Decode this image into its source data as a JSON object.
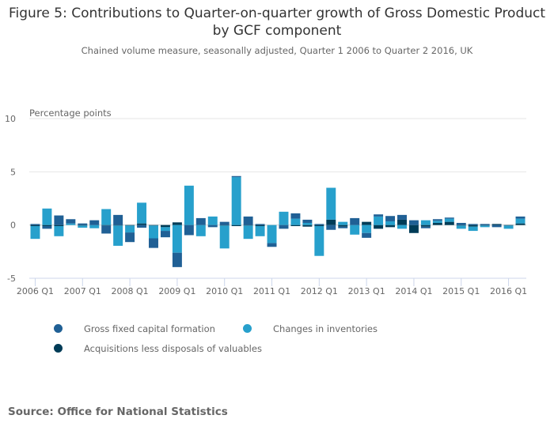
{
  "chart_data": {
    "type": "bar",
    "stacked": true,
    "title": "Figure 5: Contributions to Quarter-on-quarter growth of Gross Domestic Product by GCF component",
    "subtitle": "Chained volume measure, seasonally adjusted, Quarter 1 2006 to Quarter 2 2016, UK",
    "ylabel": "Percentage points",
    "xlabel": "",
    "ylim": [
      -5,
      10
    ],
    "yticks": [
      10,
      5,
      0,
      -5
    ],
    "grid": true,
    "legend_position": "bottom",
    "categories": [
      "2006 Q1",
      "2006 Q2",
      "2006 Q3",
      "2006 Q4",
      "2007 Q1",
      "2007 Q2",
      "2007 Q3",
      "2007 Q4",
      "2008 Q1",
      "2008 Q2",
      "2008 Q3",
      "2008 Q4",
      "2009 Q1",
      "2009 Q2",
      "2009 Q3",
      "2009 Q4",
      "2010 Q1",
      "2010 Q2",
      "2010 Q3",
      "2010 Q4",
      "2011 Q1",
      "2011 Q2",
      "2011 Q3",
      "2011 Q4",
      "2012 Q1",
      "2012 Q2",
      "2012 Q3",
      "2012 Q4",
      "2013 Q1",
      "2013 Q2",
      "2013 Q3",
      "2013 Q4",
      "2014 Q1",
      "2014 Q2",
      "2014 Q3",
      "2014 Q4",
      "2015 Q1",
      "2015 Q2",
      "2015 Q3",
      "2015 Q4",
      "2016 Q1",
      "2016 Q2"
    ],
    "xtick_labels": [
      "2006 Q1",
      "2007 Q1",
      "2008 Q1",
      "2009 Q1",
      "2010 Q1",
      "2011 Q1",
      "2012 Q1",
      "2013 Q1",
      "2014 Q1",
      "2015 Q1",
      "2016 Q1"
    ],
    "series": [
      {
        "name": "Gross fixed capital formation",
        "color": "#206095",
        "values": [
          0.1,
          -0.25,
          0.9,
          0.4,
          0.15,
          0.45,
          -0.75,
          0.95,
          -0.9,
          -0.25,
          -0.9,
          -0.6,
          -1.35,
          -0.95,
          0.65,
          -0.2,
          0.3,
          0.1,
          0.8,
          0.1,
          -0.35,
          -0.35,
          0.5,
          0.3,
          0.1,
          -0.45,
          -0.15,
          0.65,
          -0.45,
          0.2,
          0.5,
          0.45,
          0.45,
          -0.15,
          0.15,
          0.1,
          0.2,
          0.1,
          0.1,
          -0.2,
          0.0,
          0.2
        ]
      },
      {
        "name": "Changes in inventories",
        "color": "#27a0cc",
        "values": [
          -1.2,
          1.55,
          -0.95,
          0.15,
          -0.2,
          -0.3,
          1.5,
          -1.9,
          -0.65,
          1.95,
          -1.2,
          -0.35,
          -2.6,
          3.7,
          -1.05,
          0.8,
          -2.15,
          4.5,
          -1.25,
          -0.95,
          -1.7,
          1.25,
          0.6,
          0.2,
          -2.8,
          3.0,
          0.3,
          -0.9,
          -0.75,
          0.8,
          0.35,
          -0.35,
          0.0,
          0.45,
          0.2,
          0.3,
          -0.3,
          -0.4,
          -0.15,
          0.0,
          -0.3,
          0.45
        ]
      },
      {
        "name": "Acquisitions less disposals of valuables",
        "color": "#003c57",
        "values": [
          -0.1,
          -0.1,
          -0.1,
          0.0,
          -0.05,
          0.0,
          -0.05,
          -0.05,
          -0.05,
          0.15,
          -0.05,
          -0.2,
          0.25,
          0.0,
          0.0,
          0.0,
          -0.05,
          -0.1,
          -0.05,
          -0.1,
          0.0,
          0.0,
          -0.1,
          -0.15,
          -0.1,
          0.5,
          -0.15,
          0.0,
          0.3,
          -0.35,
          -0.2,
          0.5,
          -0.75,
          -0.15,
          0.2,
          0.3,
          -0.05,
          -0.15,
          -0.05,
          0.1,
          -0.05,
          0.15
        ]
      }
    ]
  },
  "source": "Source: Office for National Statistics"
}
